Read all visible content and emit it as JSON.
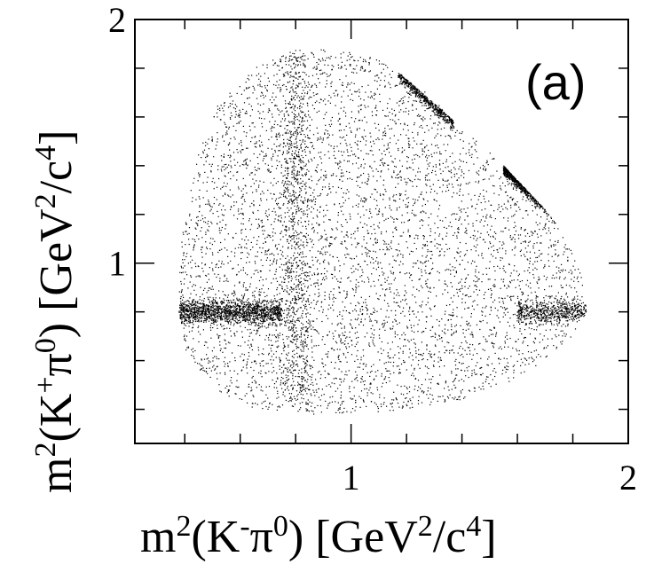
{
  "chart_data": {
    "type": "scatter",
    "title": "",
    "panel_label": "(a)",
    "xlabel": {
      "prefix": "m",
      "sup1": "2",
      "mid1": "(K",
      "sup2": "-",
      "mid2": "π",
      "sup3": "0",
      "mid3": ") [GeV",
      "sup4": "2",
      "mid4": "/c",
      "sup5": "4",
      "suffix": "]"
    },
    "ylabel": {
      "prefix": "m",
      "sup1": "2",
      "mid1": "(K",
      "sup2": "+",
      "mid2": "π",
      "sup3": "0",
      "mid3": ") [GeV",
      "sup4": "2",
      "mid4": "/c",
      "sup5": "4",
      "suffix": "]"
    },
    "xlim": [
      0.22,
      2.0
    ],
    "ylim": [
      0.26,
      2.0
    ],
    "x_major_ticks": [
      1,
      2
    ],
    "x_tick_labels": [
      "1",
      "2"
    ],
    "y_major_ticks": [
      1,
      2
    ],
    "y_tick_labels": [
      "1",
      "2"
    ],
    "x_minor_step": 0.2,
    "y_minor_step": 0.2,
    "grid": false,
    "marker_color": "#000000",
    "regions": [
      {
        "kind": "uniform_phase_space",
        "count": 5200
      },
      {
        "kind": "band_vertical",
        "center": 0.8,
        "width": 0.03,
        "y_range": [
          0.42,
          1.86
        ],
        "count": 900
      },
      {
        "kind": "band_horizontal",
        "center": 0.8,
        "width": 0.025,
        "x_range": [
          0.38,
          0.75
        ],
        "count": 1500
      },
      {
        "kind": "band_horizontal",
        "center": 0.8,
        "width": 0.025,
        "x_range": [
          1.6,
          1.85
        ],
        "count": 600
      },
      {
        "kind": "diagonal_band",
        "sum": 2.98,
        "x_range": [
          1.17,
          1.37
        ],
        "count": 500
      },
      {
        "kind": "diagonal_band",
        "sum": 2.98,
        "x_range": [
          1.55,
          1.78
        ],
        "count": 600
      }
    ],
    "phase_space_boundary": [
      [
        0.38,
        0.8
      ],
      [
        0.4,
        0.65
      ],
      [
        0.45,
        0.55
      ],
      [
        0.55,
        0.45
      ],
      [
        0.65,
        0.4
      ],
      [
        0.8,
        0.38
      ],
      [
        1.0,
        0.38
      ],
      [
        1.2,
        0.4
      ],
      [
        1.4,
        0.44
      ],
      [
        1.55,
        0.5
      ],
      [
        1.7,
        0.6
      ],
      [
        1.8,
        0.7
      ],
      [
        1.85,
        0.8
      ],
      [
        1.83,
        0.95
      ],
      [
        1.78,
        1.1
      ],
      [
        1.7,
        1.22
      ],
      [
        1.55,
        1.4
      ],
      [
        1.4,
        1.56
      ],
      [
        1.25,
        1.72
      ],
      [
        1.1,
        1.84
      ],
      [
        0.95,
        1.88
      ],
      [
        0.8,
        1.88
      ],
      [
        0.65,
        1.8
      ],
      [
        0.52,
        1.65
      ],
      [
        0.45,
        1.45
      ],
      [
        0.4,
        1.2
      ],
      [
        0.38,
        1.0
      ]
    ]
  }
}
